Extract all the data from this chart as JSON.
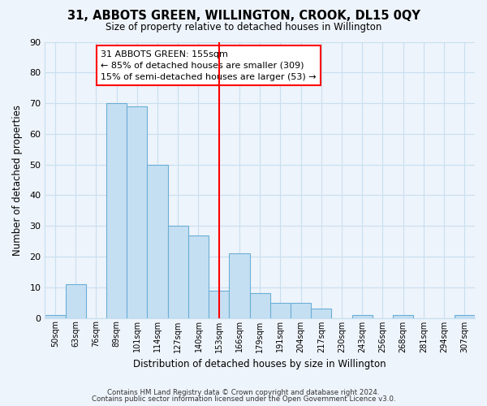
{
  "title": "31, ABBOTS GREEN, WILLINGTON, CROOK, DL15 0QY",
  "subtitle": "Size of property relative to detached houses in Willington",
  "xlabel": "Distribution of detached houses by size in Willington",
  "ylabel": "Number of detached properties",
  "bar_labels": [
    "50sqm",
    "63sqm",
    "76sqm",
    "89sqm",
    "101sqm",
    "114sqm",
    "127sqm",
    "140sqm",
    "153sqm",
    "166sqm",
    "179sqm",
    "191sqm",
    "204sqm",
    "217sqm",
    "230sqm",
    "243sqm",
    "256sqm",
    "268sqm",
    "281sqm",
    "294sqm",
    "307sqm"
  ],
  "bar_values": [
    1,
    11,
    0,
    70,
    69,
    50,
    30,
    27,
    9,
    21,
    8,
    5,
    5,
    3,
    0,
    1,
    0,
    1,
    0,
    0,
    1
  ],
  "bar_color": "#c5dff2",
  "bar_edge_color": "#6aaed6",
  "reference_line_x": 8,
  "ylim": [
    0,
    90
  ],
  "yticks": [
    0,
    10,
    20,
    30,
    40,
    50,
    60,
    70,
    80,
    90
  ],
  "annotation_title": "31 ABBOTS GREEN: 155sqm",
  "annotation_line1": "← 85% of detached houses are smaller (309)",
  "annotation_line2": "15% of semi-detached houses are larger (53) →",
  "footer_line1": "Contains HM Land Registry data © Crown copyright and database right 2024.",
  "footer_line2": "Contains public sector information licensed under the Open Government Licence v3.0.",
  "bg_color": "#eef4fb",
  "grid_color": "#c8dff0"
}
